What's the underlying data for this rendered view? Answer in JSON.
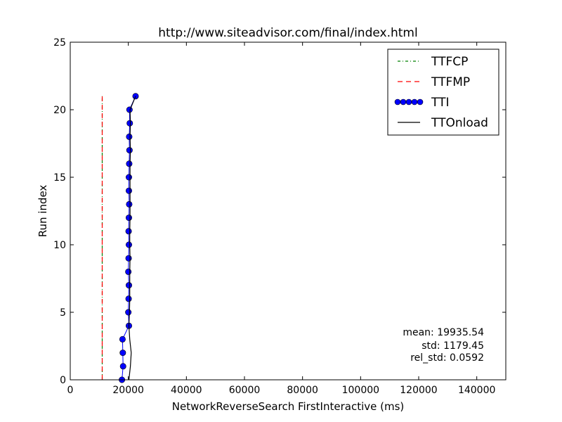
{
  "chart_data": {
    "type": "line",
    "title": "http://www.siteadvisor.com/final/index.html",
    "xlabel": "NetworkReverseSearch FirstInteractive (ms)",
    "ylabel": "Run index",
    "xlim": [
      0,
      150000
    ],
    "ylim": [
      0,
      25
    ],
    "xticks": [
      0,
      20000,
      40000,
      60000,
      80000,
      100000,
      120000,
      140000
    ],
    "yticks": [
      0,
      5,
      10,
      15,
      20,
      25
    ],
    "grid": false,
    "legend_position": "top-right",
    "series": [
      {
        "name": "TTFCP",
        "style": "dash-dot",
        "color": "#008000",
        "points": [
          [
            11000,
            0
          ],
          [
            11000,
            21
          ]
        ]
      },
      {
        "name": "TTFMP",
        "style": "dashed",
        "color": "#ff0000",
        "points": [
          [
            11000,
            0
          ],
          [
            11000,
            21
          ]
        ]
      },
      {
        "name": "TTI",
        "style": "line-markers",
        "color": "#0000ff",
        "points": [
          [
            17800,
            0
          ],
          [
            18200,
            1
          ],
          [
            18100,
            2
          ],
          [
            18000,
            3
          ],
          [
            20200,
            4
          ],
          [
            20000,
            5
          ],
          [
            20100,
            6
          ],
          [
            20200,
            7
          ],
          [
            20000,
            8
          ],
          [
            20100,
            9
          ],
          [
            20200,
            10
          ],
          [
            20100,
            11
          ],
          [
            20200,
            12
          ],
          [
            20300,
            13
          ],
          [
            20200,
            14
          ],
          [
            20200,
            15
          ],
          [
            20300,
            16
          ],
          [
            20400,
            17
          ],
          [
            20300,
            18
          ],
          [
            20500,
            19
          ],
          [
            20400,
            20
          ],
          [
            22500,
            21
          ]
        ]
      },
      {
        "name": "TTOnload",
        "style": "solid",
        "color": "#000000",
        "points": [
          [
            20200,
            0
          ],
          [
            20700,
            1
          ],
          [
            21000,
            2
          ],
          [
            20500,
            3
          ],
          [
            20200,
            4
          ],
          [
            20400,
            5
          ],
          [
            20500,
            6
          ],
          [
            20500,
            7
          ],
          [
            20500,
            8
          ],
          [
            20600,
            9
          ],
          [
            20500,
            10
          ],
          [
            20500,
            11
          ],
          [
            20600,
            12
          ],
          [
            20600,
            13
          ],
          [
            20600,
            14
          ],
          [
            20600,
            15
          ],
          [
            20600,
            16
          ],
          [
            20700,
            17
          ],
          [
            20600,
            18
          ],
          [
            20700,
            19
          ],
          [
            20600,
            20
          ],
          [
            22500,
            21
          ]
        ]
      }
    ],
    "annotations": [
      "mean: 19935.54",
      "std: 1179.45",
      "rel_std: 0.0592"
    ]
  }
}
